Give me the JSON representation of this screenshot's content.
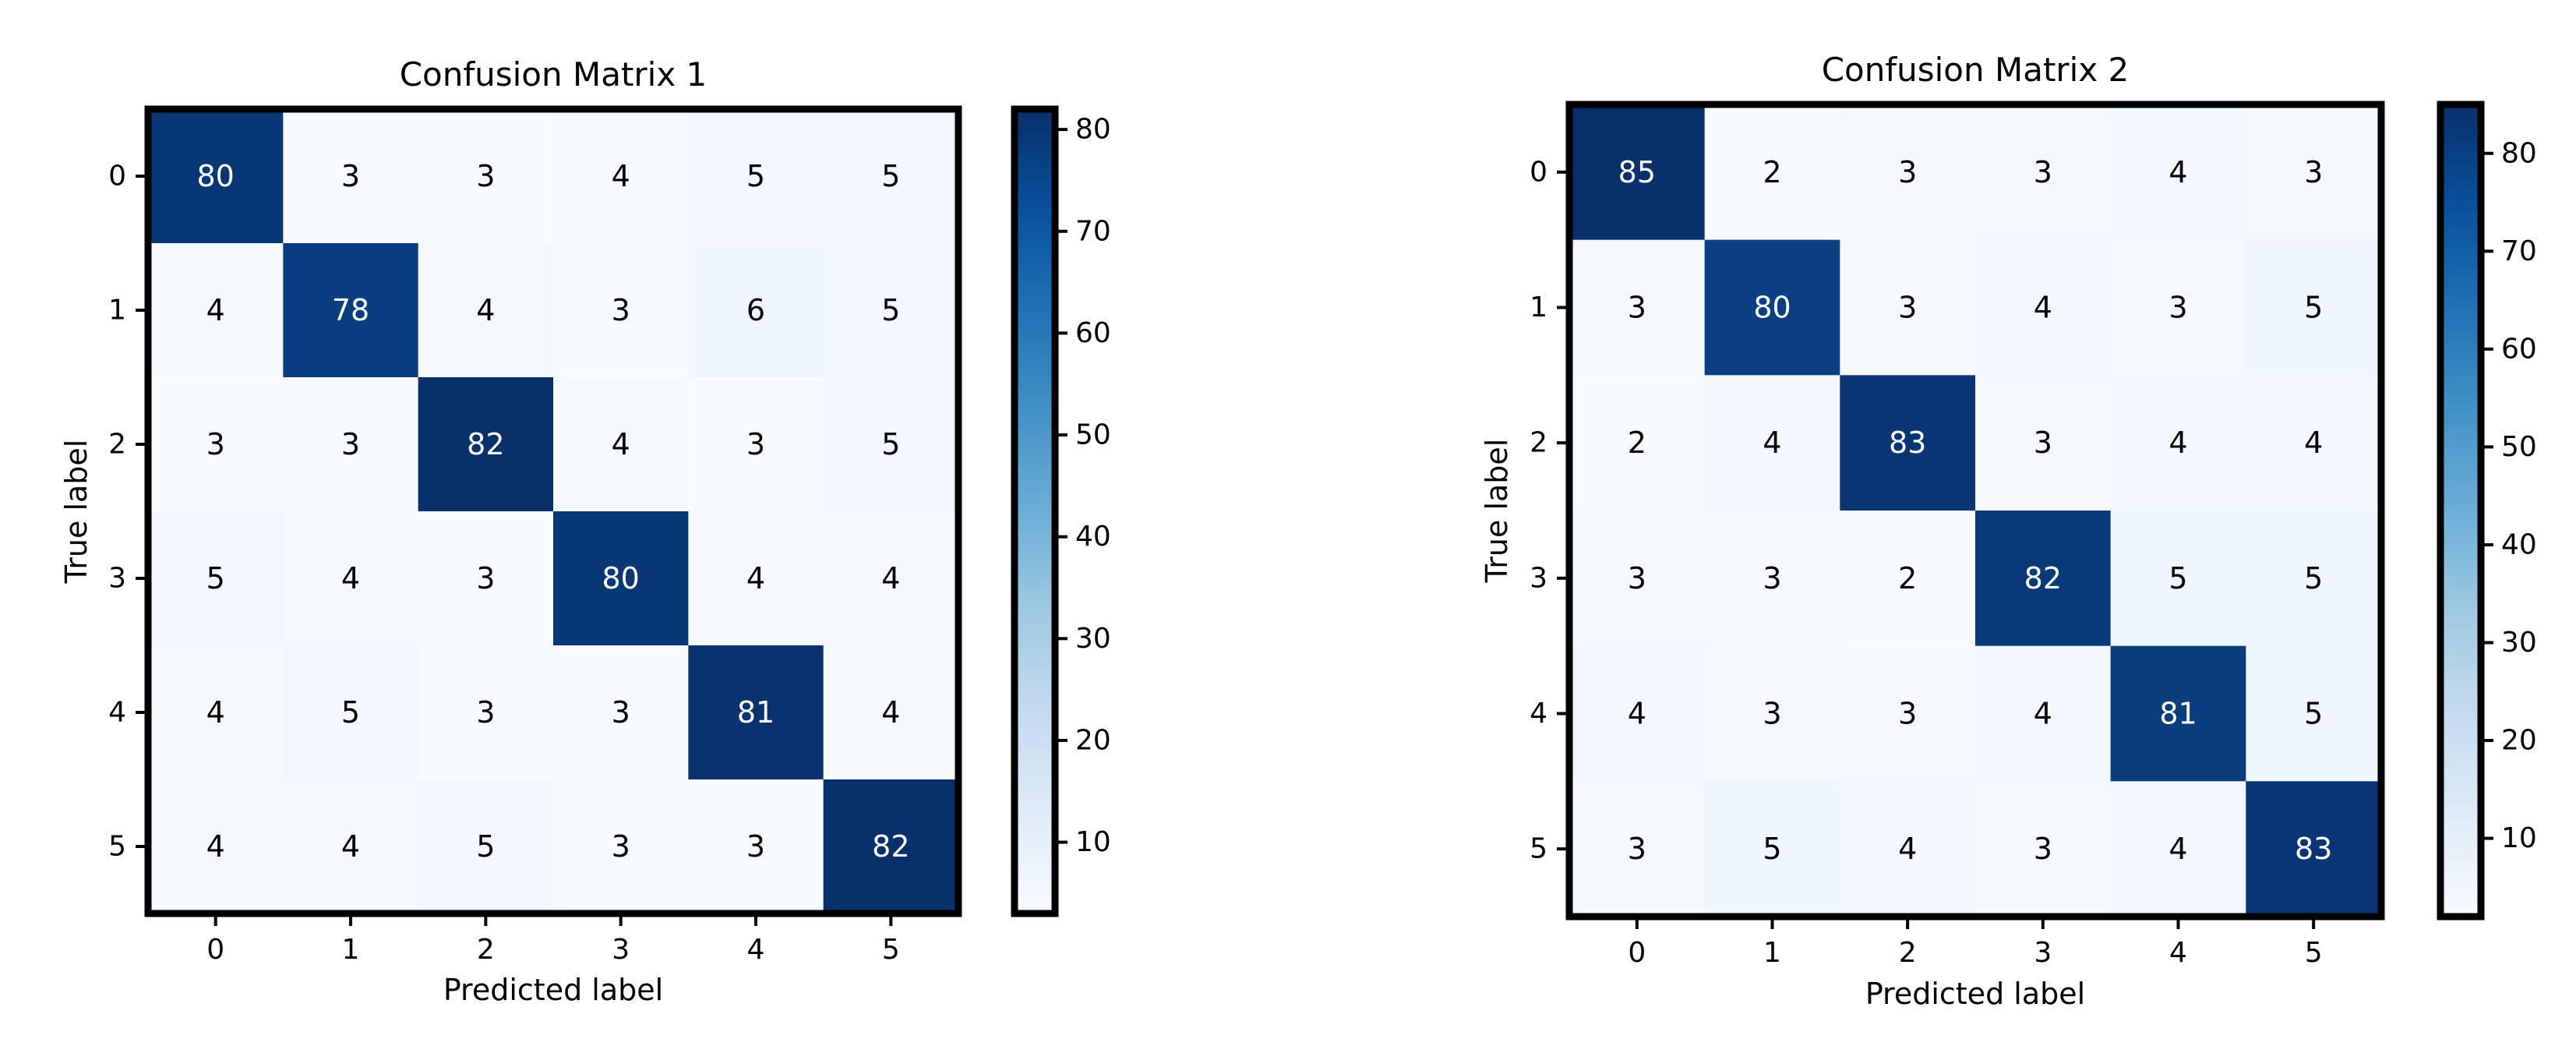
{
  "chart_data": [
    {
      "type": "heatmap",
      "title": "Confusion Matrix 1",
      "xlabel": "Predicted label",
      "ylabel": "True label",
      "x_ticks": [
        "0",
        "1",
        "2",
        "3",
        "4",
        "5"
      ],
      "y_ticks": [
        "0",
        "1",
        "2",
        "3",
        "4",
        "5"
      ],
      "values": [
        [
          80,
          3,
          3,
          4,
          5,
          5
        ],
        [
          4,
          78,
          4,
          3,
          6,
          5
        ],
        [
          3,
          3,
          82,
          4,
          3,
          5
        ],
        [
          5,
          4,
          3,
          80,
          4,
          4
        ],
        [
          4,
          5,
          3,
          3,
          81,
          4
        ],
        [
          4,
          4,
          5,
          3,
          3,
          82
        ]
      ],
      "colormap": "Blues",
      "vmin": 3,
      "vmax": 82,
      "colorbar_ticks": [
        "10",
        "20",
        "30",
        "40",
        "50",
        "60",
        "70",
        "80"
      ]
    },
    {
      "type": "heatmap",
      "title": "Confusion Matrix 2",
      "xlabel": "Predicted label",
      "ylabel": "True label",
      "x_ticks": [
        "0",
        "1",
        "2",
        "3",
        "4",
        "5"
      ],
      "y_ticks": [
        "0",
        "1",
        "2",
        "3",
        "4",
        "5"
      ],
      "values": [
        [
          85,
          2,
          3,
          3,
          4,
          3
        ],
        [
          3,
          80,
          3,
          4,
          3,
          5
        ],
        [
          2,
          4,
          83,
          3,
          4,
          4
        ],
        [
          3,
          3,
          2,
          82,
          5,
          5
        ],
        [
          4,
          3,
          3,
          4,
          81,
          5
        ],
        [
          3,
          5,
          4,
          3,
          4,
          83
        ]
      ],
      "colormap": "Blues",
      "vmin": 2,
      "vmax": 85,
      "colorbar_ticks": [
        "10",
        "20",
        "30",
        "40",
        "50",
        "60",
        "70",
        "80"
      ]
    }
  ]
}
